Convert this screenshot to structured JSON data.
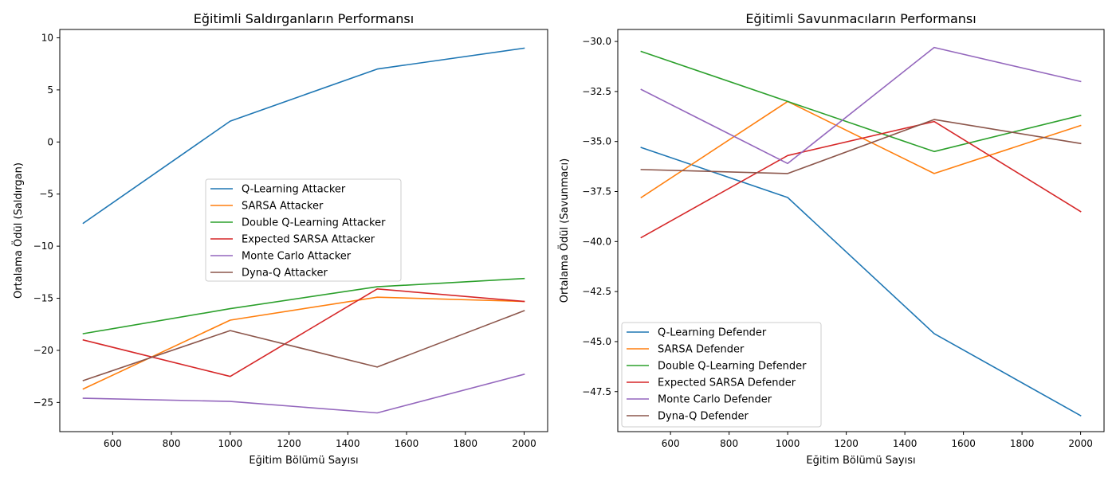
{
  "chart_data": [
    {
      "type": "line",
      "title": "Eğitimli Saldırganların Performansı",
      "xlabel": "Eğitim Bölümü Sayısı",
      "ylabel": "Ortalama Ödül (Saldırgan)",
      "x": [
        500,
        1000,
        1500,
        2000
      ],
      "xlim": [
        420,
        2080
      ],
      "ylim": [
        -27.8,
        10.8
      ],
      "xticks": [
        600,
        800,
        1000,
        1200,
        1400,
        1600,
        1800,
        2000
      ],
      "yticks": [
        10,
        5,
        0,
        -5,
        -10,
        -15,
        -20,
        -25
      ],
      "ytick_labels": [
        "10",
        "5",
        "0",
        "−5",
        "−10",
        "−15",
        "−20",
        "−25"
      ],
      "grid": false,
      "legend_position": "center",
      "series": [
        {
          "name": "Q-Learning Attacker",
          "color": "#1f77b4",
          "values": [
            -7.8,
            2.0,
            7.0,
            9.0
          ]
        },
        {
          "name": "SARSA Attacker",
          "color": "#ff7f0e",
          "values": [
            -23.7,
            -17.1,
            -14.9,
            -15.3
          ]
        },
        {
          "name": "Double Q-Learning Attacker",
          "color": "#2ca02c",
          "values": [
            -18.4,
            -16.0,
            -13.9,
            -13.1
          ]
        },
        {
          "name": "Expected SARSA Attacker",
          "color": "#d62728",
          "values": [
            -19.0,
            -22.5,
            -14.1,
            -15.3
          ]
        },
        {
          "name": "Monte Carlo Attacker",
          "color": "#9467bd",
          "values": [
            -24.6,
            -24.9,
            -26.0,
            -22.3
          ]
        },
        {
          "name": "Dyna-Q Attacker",
          "color": "#8c564b",
          "values": [
            -22.9,
            -18.1,
            -21.6,
            -16.2
          ]
        }
      ]
    },
    {
      "type": "line",
      "title": "Eğitimli Savunmacıların Performansı",
      "xlabel": "Eğitim Bölümü Sayısı",
      "ylabel": "Ortalama Ödül (Savunmacı)",
      "x": [
        500,
        1000,
        1500,
        2000
      ],
      "xlim": [
        420,
        2080
      ],
      "ylim": [
        -49.5,
        -29.4
      ],
      "xticks": [
        600,
        800,
        1000,
        1200,
        1400,
        1600,
        1800,
        2000
      ],
      "yticks": [
        -30.0,
        -32.5,
        -35.0,
        -37.5,
        -40.0,
        -42.5,
        -45.0,
        -47.5
      ],
      "ytick_labels": [
        "−30.0",
        "−32.5",
        "−35.0",
        "−37.5",
        "−40.0",
        "−42.5",
        "−45.0",
        "−47.5"
      ],
      "grid": false,
      "legend_position": "lower-left",
      "series": [
        {
          "name": "Q-Learning Defender",
          "color": "#1f77b4",
          "values": [
            -35.3,
            -37.8,
            -44.6,
            -48.7
          ]
        },
        {
          "name": "SARSA Defender",
          "color": "#ff7f0e",
          "values": [
            -37.8,
            -33.0,
            -36.6,
            -34.2
          ]
        },
        {
          "name": "Double Q-Learning Defender",
          "color": "#2ca02c",
          "values": [
            -30.5,
            -33.0,
            -35.5,
            -33.7
          ]
        },
        {
          "name": "Expected SARSA Defender",
          "color": "#d62728",
          "values": [
            -39.8,
            -35.7,
            -34.0,
            -38.5
          ]
        },
        {
          "name": "Monte Carlo Defender",
          "color": "#9467bd",
          "values": [
            -32.4,
            -36.1,
            -30.3,
            -32.0
          ]
        },
        {
          "name": "Dyna-Q Defender",
          "color": "#8c564b",
          "values": [
            -36.4,
            -36.6,
            -33.9,
            -35.1
          ]
        }
      ]
    }
  ]
}
